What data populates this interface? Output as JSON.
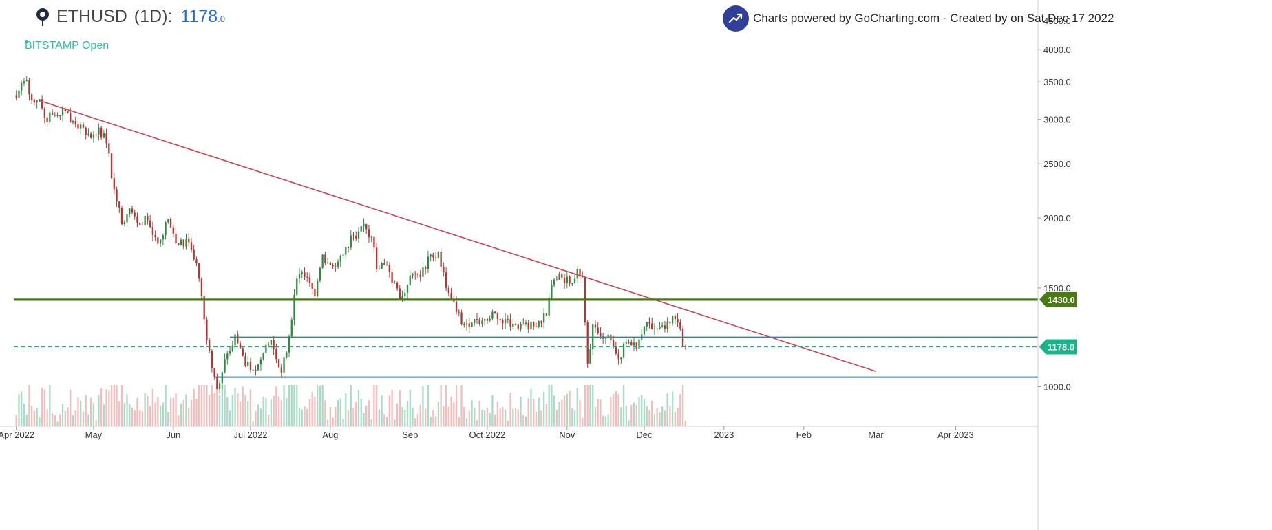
{
  "header": {
    "symbol": "ETHUSD",
    "interval": "(1D)",
    "colon": ":",
    "price_main": "1178",
    "price_sup": ".0",
    "exchange_status": "BITSTAMP Open",
    "credit": "Charts powered by GoCharting.com - Created by  on Sat Dec 17 2022"
  },
  "colors": {
    "up": "#2e8b3e",
    "down": "#b8332f",
    "trendline": "#d6404a",
    "support_h": "#3b78b8",
    "resistance_h": "#4a7a12",
    "current_price": "#19b388",
    "axis_text": "#333333",
    "volume_up": "#a8dcc6",
    "volume_down": "#f5bcbc"
  },
  "chart_data": {
    "type": "candlestick",
    "symbol": "ETHUSD",
    "interval": "1D",
    "exchange": "BITSTAMP",
    "y_scale": "log",
    "ylim": [
      850,
      4900
    ],
    "y_ticks": [
      {
        "value": 4500,
        "label": "4500.0"
      },
      {
        "value": 4000,
        "label": "4000.0"
      },
      {
        "value": 3500,
        "label": "3500.0"
      },
      {
        "value": 3000,
        "label": "3000.0"
      },
      {
        "value": 2500,
        "label": "2500.0"
      },
      {
        "value": 2000,
        "label": "2000.0"
      },
      {
        "value": 1500,
        "label": "1500.0"
      },
      {
        "value": 1000,
        "label": "1000.0"
      }
    ],
    "x_range": [
      "2022-03-31",
      "2023-05-03"
    ],
    "x_ticks": [
      {
        "date": "2022-04-01",
        "label": "Apr 2022"
      },
      {
        "date": "2022-05-01",
        "label": "May"
      },
      {
        "date": "2022-06-01",
        "label": "Jun"
      },
      {
        "date": "2022-07-01",
        "label": "Jul 2022"
      },
      {
        "date": "2022-08-01",
        "label": "Aug"
      },
      {
        "date": "2022-09-01",
        "label": "Sep"
      },
      {
        "date": "2022-10-01",
        "label": "Oct 2022"
      },
      {
        "date": "2022-11-01",
        "label": "Nov"
      },
      {
        "date": "2022-12-01",
        "label": "Dec"
      },
      {
        "date": "2023-01-01",
        "label": "2023"
      },
      {
        "date": "2023-02-01",
        "label": "Feb"
      },
      {
        "date": "2023-03-01",
        "label": "Mar"
      },
      {
        "date": "2023-04-01",
        "label": "Apr 2023"
      }
    ],
    "price_path": [
      [
        "2022-04-01",
        3280
      ],
      [
        "2022-04-03",
        3480
      ],
      [
        "2022-04-05",
        3520
      ],
      [
        "2022-04-07",
        3250
      ],
      [
        "2022-04-10",
        3260
      ],
      [
        "2022-04-12",
        3020
      ],
      [
        "2022-04-16",
        3050
      ],
      [
        "2022-04-20",
        3100
      ],
      [
        "2022-04-24",
        2940
      ],
      [
        "2022-04-27",
        2900
      ],
      [
        "2022-04-30",
        2780
      ],
      [
        "2022-05-03",
        2900
      ],
      [
        "2022-05-06",
        2720
      ],
      [
        "2022-05-09",
        2250
      ],
      [
        "2022-05-12",
        1950
      ],
      [
        "2022-05-15",
        2080
      ],
      [
        "2022-05-18",
        1960
      ],
      [
        "2022-05-22",
        1980
      ],
      [
        "2022-05-26",
        1800
      ],
      [
        "2022-05-30",
        1990
      ],
      [
        "2022-06-03",
        1790
      ],
      [
        "2022-06-07",
        1810
      ],
      [
        "2022-06-10",
        1660
      ],
      [
        "2022-06-12",
        1450
      ],
      [
        "2022-06-14",
        1210
      ],
      [
        "2022-06-16",
        1080
      ],
      [
        "2022-06-18",
        990
      ],
      [
        "2022-06-21",
        1120
      ],
      [
        "2022-06-25",
        1240
      ],
      [
        "2022-06-29",
        1090
      ],
      [
        "2022-07-03",
        1070
      ],
      [
        "2022-07-06",
        1150
      ],
      [
        "2022-07-09",
        1210
      ],
      [
        "2022-07-13",
        1060
      ],
      [
        "2022-07-16",
        1230
      ],
      [
        "2022-07-19",
        1560
      ],
      [
        "2022-07-22",
        1570
      ],
      [
        "2022-07-26",
        1450
      ],
      [
        "2022-07-29",
        1720
      ],
      [
        "2022-08-02",
        1640
      ],
      [
        "2022-08-06",
        1720
      ],
      [
        "2022-08-10",
        1860
      ],
      [
        "2022-08-14",
        1950
      ],
      [
        "2022-08-17",
        1850
      ],
      [
        "2022-08-19",
        1620
      ],
      [
        "2022-08-23",
        1650
      ],
      [
        "2022-08-28",
        1430
      ],
      [
        "2022-09-01",
        1580
      ],
      [
        "2022-09-05",
        1570
      ],
      [
        "2022-09-09",
        1720
      ],
      [
        "2022-09-12",
        1740
      ],
      [
        "2022-09-14",
        1600
      ],
      [
        "2022-09-16",
        1470
      ],
      [
        "2022-09-19",
        1360
      ],
      [
        "2022-09-22",
        1290
      ],
      [
        "2022-09-26",
        1320
      ],
      [
        "2022-09-30",
        1320
      ],
      [
        "2022-10-04",
        1350
      ],
      [
        "2022-10-08",
        1320
      ],
      [
        "2022-10-12",
        1290
      ],
      [
        "2022-10-16",
        1300
      ],
      [
        "2022-10-20",
        1280
      ],
      [
        "2022-10-24",
        1340
      ],
      [
        "2022-10-26",
        1520
      ],
      [
        "2022-10-29",
        1590
      ],
      [
        "2022-11-02",
        1530
      ],
      [
        "2022-11-05",
        1620
      ],
      [
        "2022-11-07",
        1570
      ],
      [
        "2022-11-09",
        1100
      ],
      [
        "2022-11-11",
        1290
      ],
      [
        "2022-11-14",
        1230
      ],
      [
        "2022-11-18",
        1210
      ],
      [
        "2022-11-21",
        1120
      ],
      [
        "2022-11-24",
        1200
      ],
      [
        "2022-11-28",
        1170
      ],
      [
        "2022-12-01",
        1280
      ],
      [
        "2022-12-05",
        1270
      ],
      [
        "2022-12-09",
        1270
      ],
      [
        "2022-12-13",
        1320
      ],
      [
        "2022-12-15",
        1270
      ],
      [
        "2022-12-16",
        1180
      ],
      [
        "2022-12-17",
        1178
      ]
    ],
    "annotations": [
      {
        "type": "trendline",
        "from": [
          "2022-04-10",
          3240
        ],
        "to": [
          "2023-03-01",
          1065
        ]
      },
      {
        "type": "hline",
        "value": 1430,
        "label": "1430.0",
        "from": "2022-03-31",
        "to": "2023-05-03",
        "color": "resistance_h"
      },
      {
        "type": "hline",
        "value": 1225,
        "from": "2022-06-23",
        "to": "2023-05-03",
        "color": "support_h"
      },
      {
        "type": "hline",
        "value": 1040,
        "from": "2022-06-17",
        "to": "2023-05-03",
        "color": "support_h"
      },
      {
        "type": "price_line",
        "value": 1178,
        "label": "1178.0",
        "from": "2022-03-31",
        "to": "2023-05-03",
        "color": "current_price"
      }
    ],
    "grid": false,
    "legend": "none"
  }
}
